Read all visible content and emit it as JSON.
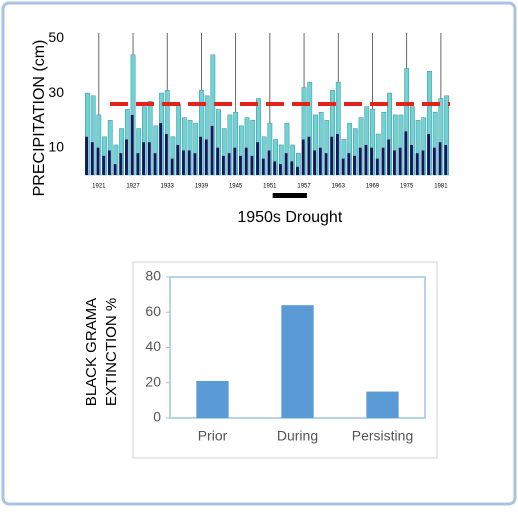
{
  "chart_data": [
    {
      "type": "bar",
      "ylabel": "PRECIPITATION (cm)",
      "x": [
        1919,
        1920,
        1921,
        1922,
        1923,
        1924,
        1925,
        1926,
        1927,
        1928,
        1929,
        1930,
        1931,
        1932,
        1933,
        1934,
        1935,
        1936,
        1937,
        1938,
        1939,
        1940,
        1941,
        1942,
        1943,
        1944,
        1945,
        1946,
        1947,
        1948,
        1949,
        1950,
        1951,
        1952,
        1953,
        1954,
        1955,
        1956,
        1957,
        1958,
        1959,
        1960,
        1961,
        1962,
        1963,
        1964,
        1965,
        1966,
        1967,
        1968,
        1969,
        1970,
        1971,
        1972,
        1973,
        1974,
        1975,
        1976,
        1977,
        1978,
        1979,
        1980,
        1981,
        1982
      ],
      "series": [
        {
          "color": "#6fd3d6",
          "values": [
            30,
            29,
            22,
            14,
            20,
            11,
            17,
            24,
            44,
            17,
            25,
            27,
            18,
            30,
            31,
            14,
            26,
            21,
            20,
            19,
            31,
            29,
            44,
            24,
            17,
            22,
            23,
            18,
            21,
            20,
            28,
            14,
            19,
            13,
            11,
            19,
            11,
            8,
            32,
            34,
            22,
            23,
            20,
            31,
            34,
            13,
            19,
            17,
            21,
            25,
            24,
            15,
            23,
            30,
            22,
            22,
            39,
            25,
            20,
            21,
            38,
            23,
            28,
            29
          ]
        },
        {
          "color": "#14165e",
          "values": [
            14,
            12,
            10,
            7,
            9,
            4,
            8,
            13,
            22,
            8,
            12,
            12,
            8,
            19,
            15,
            6,
            11,
            9,
            9,
            8,
            14,
            13,
            18,
            10,
            7,
            8,
            10,
            7,
            10,
            7,
            12,
            6,
            9,
            5,
            4,
            8,
            5,
            3,
            13,
            14,
            9,
            10,
            8,
            14,
            15,
            6,
            8,
            7,
            10,
            11,
            10,
            6,
            10,
            13,
            9,
            10,
            16,
            11,
            8,
            9,
            15,
            10,
            12,
            11
          ]
        }
      ],
      "reference_line": 26,
      "reference_color": "#e2231a",
      "xlim": [
        1918.4,
        1982.6
      ],
      "xticks": [
        1921,
        1927,
        1933,
        1939,
        1945,
        1951,
        1957,
        1963,
        1969,
        1975,
        1981
      ],
      "ylim": [
        0,
        52
      ],
      "yticks": [
        10,
        30,
        50
      ],
      "grid": true,
      "annotation": {
        "text": "1950s Drought",
        "range": [
          1951.5,
          1957.5
        ]
      }
    },
    {
      "type": "bar",
      "ylabel": [
        "BLACK GRAMA",
        "EXTINCTION %"
      ],
      "categories": [
        "Prior",
        "During",
        "Persisting"
      ],
      "values": [
        21,
        64,
        15
      ],
      "color": "#5b9bd5",
      "ylim": [
        0,
        80
      ],
      "yticks": [
        0,
        20,
        40,
        60,
        80
      ]
    }
  ]
}
